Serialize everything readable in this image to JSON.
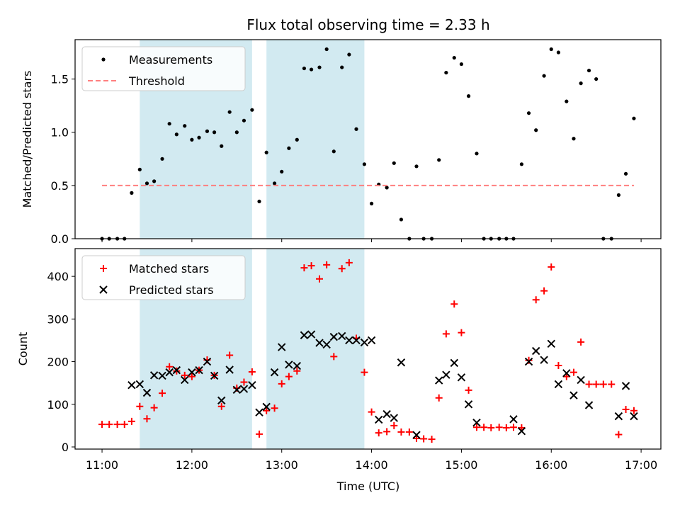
{
  "chart_data": {
    "type": "scatter",
    "title": "Flux total observing time = 2.33 h",
    "xlabel": "Time (UTC)",
    "x_unit": "hours (UTC)",
    "xlim": [
      10.7,
      17.22
    ],
    "xticks": [
      11,
      12,
      13,
      14,
      15,
      16,
      17
    ],
    "xtick_labels": [
      "11:00",
      "12:00",
      "13:00",
      "14:00",
      "15:00",
      "16:00",
      "17:00"
    ],
    "shaded_intervals": [
      [
        11.42,
        12.67
      ],
      [
        12.83,
        13.92
      ]
    ],
    "shade_color": "#add8e6",
    "panels": [
      {
        "ylabel": "Matched/Predicted stars",
        "ylim": [
          0,
          1.87
        ],
        "yticks": [
          0.0,
          0.5,
          1.0,
          1.5
        ],
        "ytick_labels": [
          "0.0",
          "0.5",
          "1.0",
          "1.5"
        ],
        "legend_placement": "upper-left",
        "series": [
          {
            "name": "Measurements",
            "marker": "dot",
            "color": "#000000",
            "points": [
              [
                11,
                0
              ],
              [
                11.08,
                0
              ],
              [
                11.17,
                0
              ],
              [
                11.25,
                0
              ],
              [
                11.33,
                0.43
              ],
              [
                11.42,
                0.65
              ],
              [
                11.5,
                0.52
              ],
              [
                11.58,
                0.54
              ],
              [
                11.67,
                0.75
              ],
              [
                11.75,
                1.08
              ],
              [
                11.83,
                0.98
              ],
              [
                11.92,
                1.06
              ],
              [
                12,
                0.93
              ],
              [
                12.08,
                0.95
              ],
              [
                12.17,
                1.01
              ],
              [
                12.25,
                1.0
              ],
              [
                12.33,
                0.87
              ],
              [
                12.42,
                1.19
              ],
              [
                12.5,
                1.0
              ],
              [
                12.58,
                1.11
              ],
              [
                12.67,
                1.21
              ],
              [
                12.75,
                0.35
              ],
              [
                12.83,
                0.81
              ],
              [
                12.92,
                0.52
              ],
              [
                13,
                0.63
              ],
              [
                13.08,
                0.85
              ],
              [
                13.17,
                0.93
              ],
              [
                13.25,
                1.6
              ],
              [
                13.33,
                1.59
              ],
              [
                13.42,
                1.61
              ],
              [
                13.5,
                1.78
              ],
              [
                13.58,
                0.82
              ],
              [
                13.67,
                1.61
              ],
              [
                13.75,
                1.73
              ],
              [
                13.83,
                1.03
              ],
              [
                13.92,
                0.7
              ],
              [
                14,
                0.33
              ],
              [
                14.08,
                0.51
              ],
              [
                14.17,
                0.48
              ],
              [
                14.25,
                0.71
              ],
              [
                14.33,
                0.18
              ],
              [
                14.42,
                0
              ],
              [
                14.5,
                0.68
              ],
              [
                14.58,
                0
              ],
              [
                14.67,
                0
              ],
              [
                14.75,
                0.74
              ],
              [
                14.83,
                1.56
              ],
              [
                14.92,
                1.7
              ],
              [
                15,
                1.64
              ],
              [
                15.08,
                1.34
              ],
              [
                15.17,
                0.8
              ],
              [
                15.25,
                0
              ],
              [
                15.33,
                0
              ],
              [
                15.42,
                0
              ],
              [
                15.5,
                0
              ],
              [
                15.58,
                0
              ],
              [
                15.67,
                0.7
              ],
              [
                15.75,
                1.18
              ],
              [
                15.83,
                1.02
              ],
              [
                15.92,
                1.53
              ],
              [
                16,
                1.78
              ],
              [
                16.08,
                1.75
              ],
              [
                16.17,
                1.29
              ],
              [
                16.25,
                0.94
              ],
              [
                16.33,
                1.46
              ],
              [
                16.42,
                1.58
              ],
              [
                16.5,
                1.5
              ],
              [
                16.58,
                0
              ],
              [
                16.67,
                0
              ],
              [
                16.75,
                0.41
              ],
              [
                16.83,
                0.61
              ],
              [
                16.92,
                1.13
              ]
            ]
          },
          {
            "name": "Threshold",
            "marker": "dashed-line",
            "color": "#ff7f7f",
            "x": [
              11,
              16.92
            ],
            "y": [
              0.5,
              0.5
            ]
          }
        ]
      },
      {
        "ylabel": "Count",
        "ylim": [
          -5,
          465
        ],
        "yticks": [
          0,
          100,
          200,
          300,
          400
        ],
        "ytick_labels": [
          "0",
          "100",
          "200",
          "300",
          "400"
        ],
        "legend_placement": "upper-left",
        "series": [
          {
            "name": "Matched stars",
            "marker": "plus",
            "color": "#ff0000",
            "points": [
              [
                11,
                53
              ],
              [
                11.08,
                53
              ],
              [
                11.17,
                53
              ],
              [
                11.25,
                53
              ],
              [
                11.33,
                60
              ],
              [
                11.42,
                95
              ],
              [
                11.5,
                66
              ],
              [
                11.58,
                92
              ],
              [
                11.67,
                126
              ],
              [
                11.75,
                188
              ],
              [
                11.83,
                178
              ],
              [
                11.92,
                168
              ],
              [
                12,
                165
              ],
              [
                12.08,
                180
              ],
              [
                12.17,
                204
              ],
              [
                12.25,
                168
              ],
              [
                12.33,
                95
              ],
              [
                12.42,
                215
              ],
              [
                12.5,
                138
              ],
              [
                12.58,
                152
              ],
              [
                12.67,
                176
              ],
              [
                12.75,
                30
              ],
              [
                12.83,
                85
              ],
              [
                12.92,
                91
              ],
              [
                13,
                148
              ],
              [
                13.08,
                165
              ],
              [
                13.17,
                178
              ],
              [
                13.25,
                420
              ],
              [
                13.33,
                425
              ],
              [
                13.42,
                394
              ],
              [
                13.5,
                427
              ],
              [
                13.58,
                212
              ],
              [
                13.67,
                418
              ],
              [
                13.75,
                432
              ],
              [
                13.83,
                255
              ],
              [
                13.92,
                175
              ],
              [
                14,
                82
              ],
              [
                14.08,
                33
              ],
              [
                14.17,
                36
              ],
              [
                14.25,
                50
              ],
              [
                14.33,
                35
              ],
              [
                14.42,
                35
              ],
              [
                14.5,
                20
              ],
              [
                14.58,
                19
              ],
              [
                14.67,
                18
              ],
              [
                14.75,
                115
              ],
              [
                14.83,
                265
              ],
              [
                14.92,
                335
              ],
              [
                15,
                268
              ],
              [
                15.08,
                133
              ],
              [
                15.17,
                46
              ],
              [
                15.25,
                46
              ],
              [
                15.33,
                45
              ],
              [
                15.42,
                46
              ],
              [
                15.5,
                45
              ],
              [
                15.58,
                46
              ],
              [
                15.67,
                45
              ],
              [
                15.75,
                203
              ],
              [
                15.83,
                345
              ],
              [
                15.92,
                366
              ],
              [
                16,
                422
              ],
              [
                16.08,
                191
              ],
              [
                16.17,
                165
              ],
              [
                16.25,
                175
              ],
              [
                16.33,
                246
              ],
              [
                16.42,
                147
              ],
              [
                16.5,
                147
              ],
              [
                16.58,
                147
              ],
              [
                16.67,
                147
              ],
              [
                16.75,
                29
              ],
              [
                16.83,
                88
              ],
              [
                16.92,
                85
              ]
            ]
          },
          {
            "name": "Predicted stars",
            "marker": "x",
            "color": "#000000",
            "points": [
              [
                11.33,
                145
              ],
              [
                11.42,
                147
              ],
              [
                11.5,
                127
              ],
              [
                11.58,
                168
              ],
              [
                11.67,
                167
              ],
              [
                11.75,
                175
              ],
              [
                11.83,
                180
              ],
              [
                11.92,
                157
              ],
              [
                12,
                175
              ],
              [
                12.08,
                180
              ],
              [
                12.17,
                200
              ],
              [
                12.25,
                167
              ],
              [
                12.33,
                109
              ],
              [
                12.42,
                181
              ],
              [
                12.5,
                134
              ],
              [
                12.58,
                136
              ],
              [
                12.67,
                145
              ],
              [
                12.75,
                81
              ],
              [
                12.83,
                94
              ],
              [
                12.92,
                175
              ],
              [
                13,
                234
              ],
              [
                13.08,
                193
              ],
              [
                13.17,
                190
              ],
              [
                13.25,
                262
              ],
              [
                13.33,
                264
              ],
              [
                13.42,
                244
              ],
              [
                13.5,
                240
              ],
              [
                13.58,
                258
              ],
              [
                13.67,
                260
              ],
              [
                13.75,
                250
              ],
              [
                13.83,
                250
              ],
              [
                13.92,
                245
              ],
              [
                14,
                250
              ],
              [
                14.08,
                64
              ],
              [
                14.17,
                77
              ],
              [
                14.25,
                68
              ],
              [
                14.33,
                198
              ],
              [
                14.5,
                28
              ],
              [
                14.75,
                156
              ],
              [
                14.83,
                169
              ],
              [
                14.92,
                197
              ],
              [
                15,
                163
              ],
              [
                15.08,
                100
              ],
              [
                15.17,
                57
              ],
              [
                15.58,
                65
              ],
              [
                15.67,
                37
              ],
              [
                15.75,
                200
              ],
              [
                15.83,
                225
              ],
              [
                15.92,
                204
              ],
              [
                16,
                242
              ],
              [
                16.08,
                147
              ],
              [
                16.17,
                173
              ],
              [
                16.25,
                121
              ],
              [
                16.33,
                157
              ],
              [
                16.42,
                98
              ],
              [
                16.75,
                72
              ],
              [
                16.83,
                143
              ],
              [
                16.92,
                72
              ]
            ]
          }
        ]
      }
    ]
  }
}
